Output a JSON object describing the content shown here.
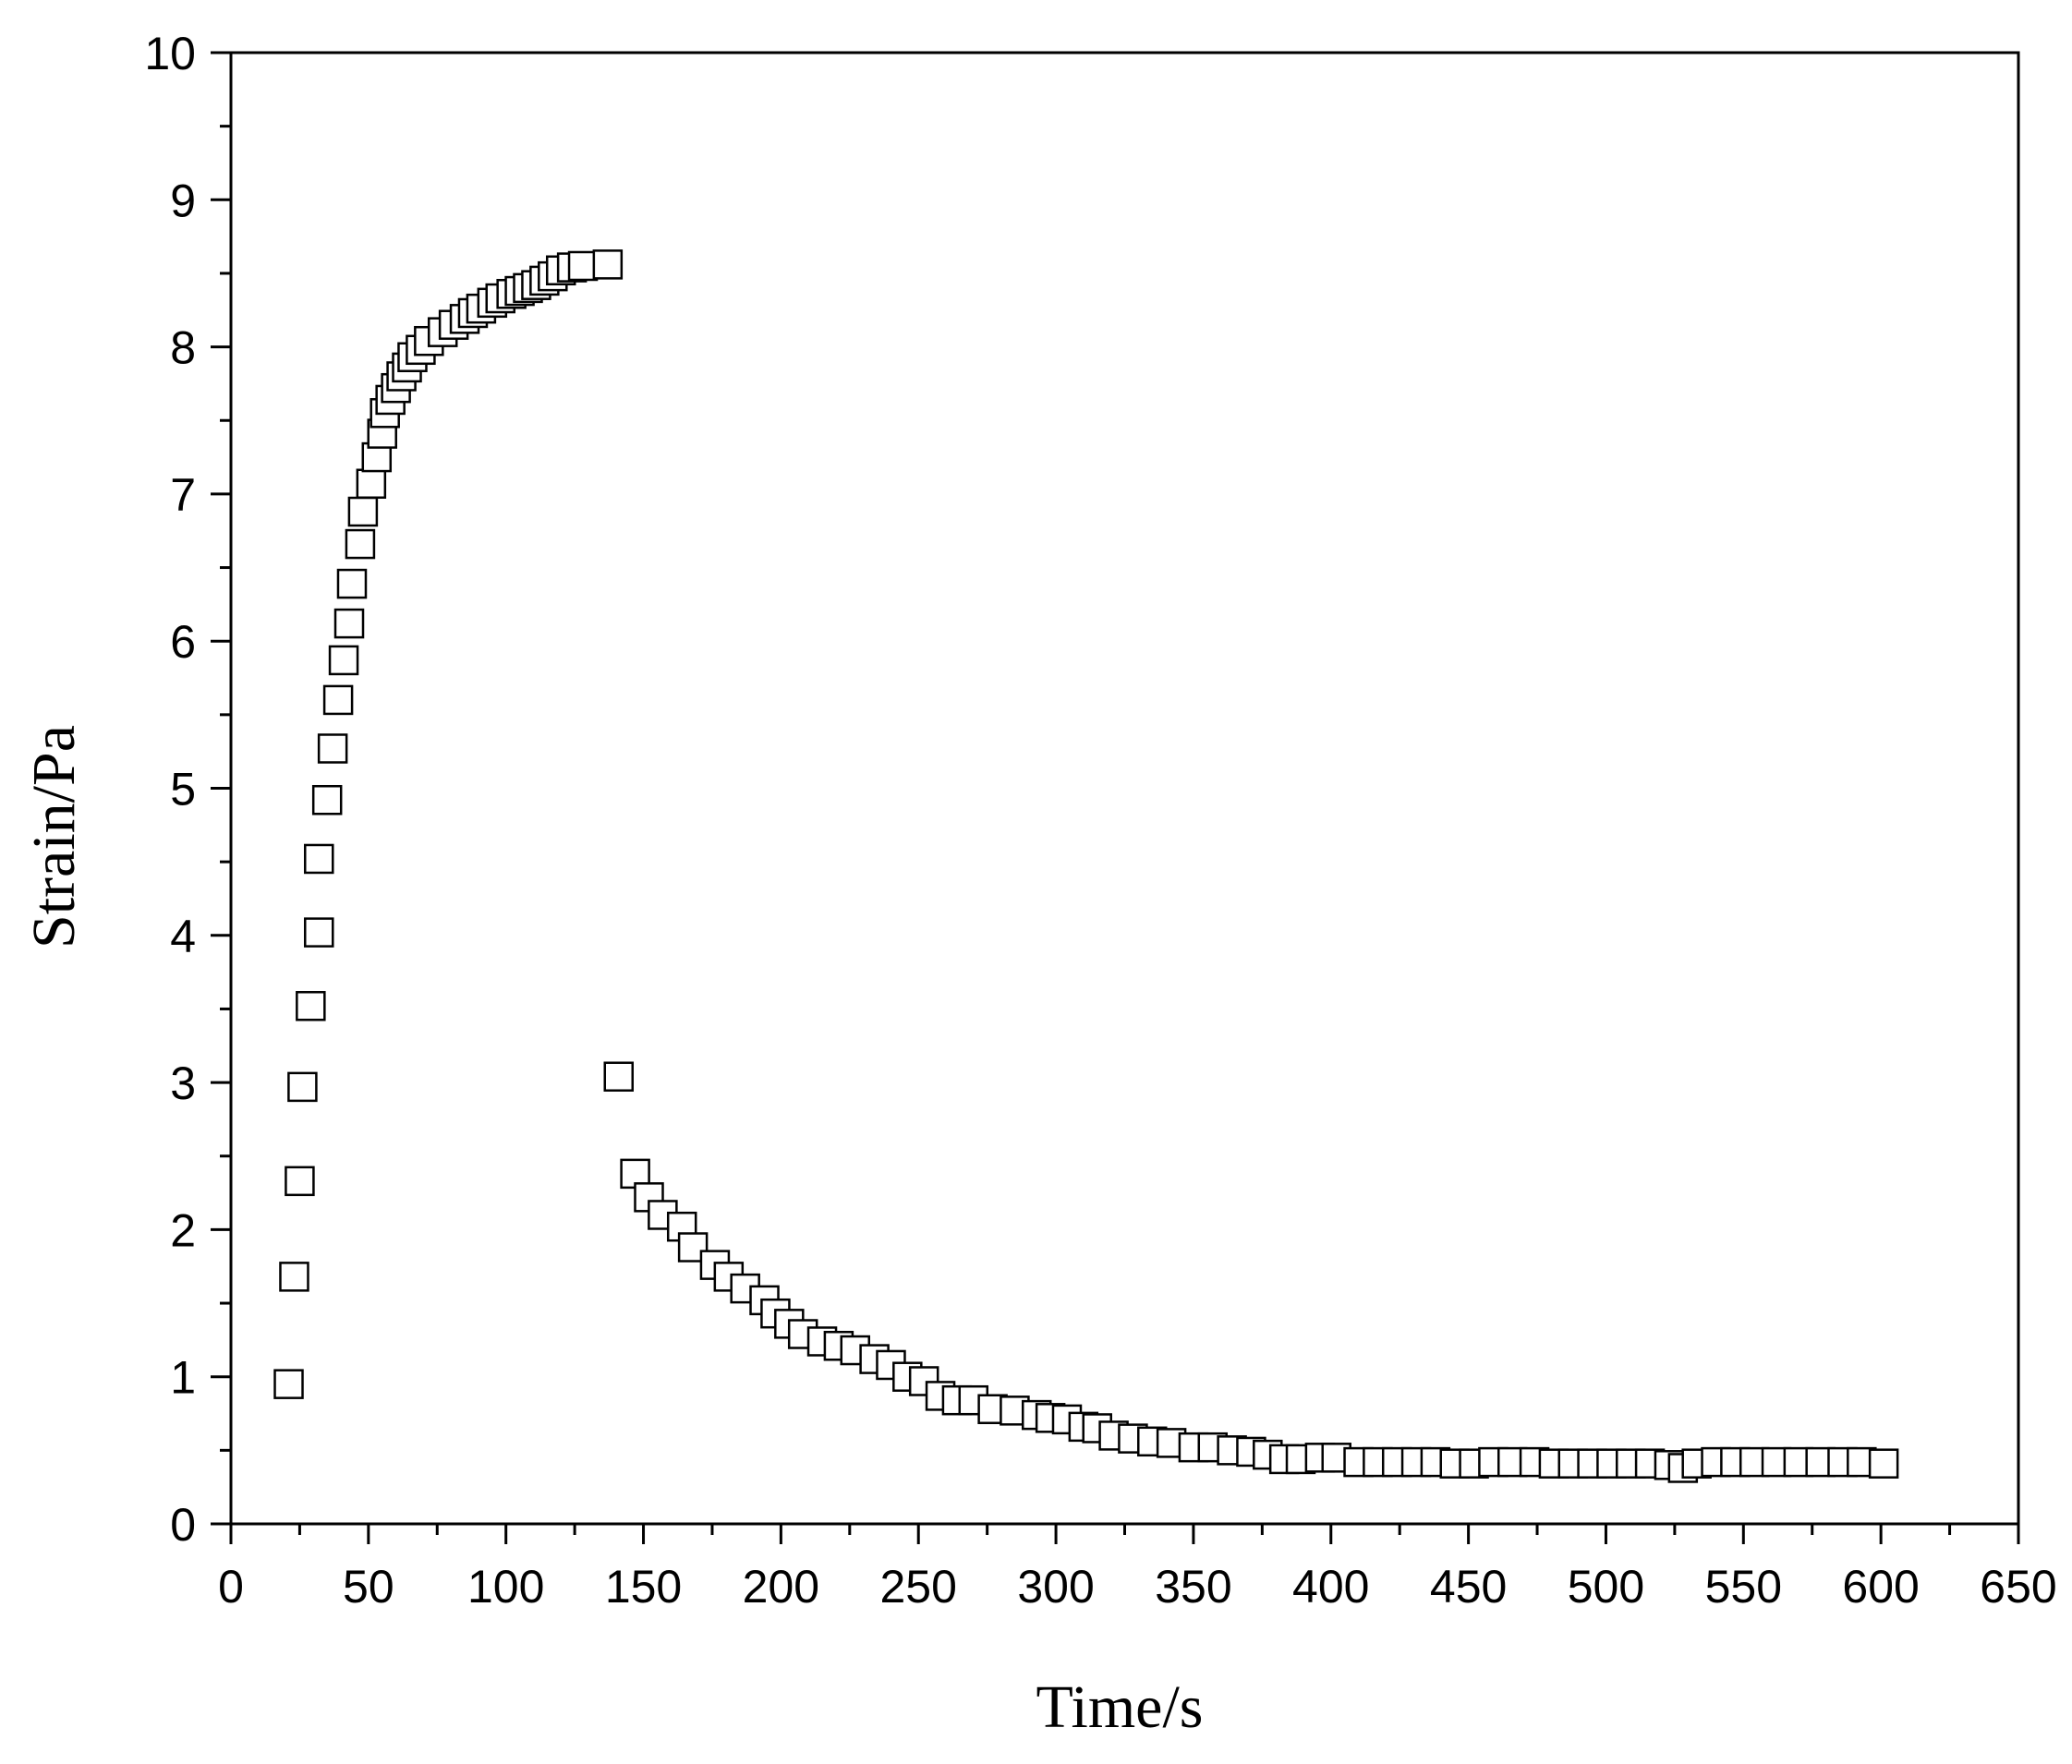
{
  "chart_data": {
    "type": "scatter",
    "title": "",
    "xlabel": "Time/s",
    "ylabel": "Strain/Pa",
    "xlim": [
      0,
      650
    ],
    "ylim": [
      0,
      10
    ],
    "x_ticks": [
      "0",
      "50",
      "100",
      "150",
      "200",
      "250",
      "300",
      "350",
      "400",
      "450",
      "500",
      "550",
      "600",
      "650"
    ],
    "y_ticks": [
      "0",
      "1",
      "2",
      "3",
      "4",
      "5",
      "6",
      "7",
      "8",
      "9",
      "10"
    ],
    "grid": false,
    "legend": "none",
    "marker": "open-square",
    "marker_color": "#000000",
    "series": [
      {
        "x": [
          21,
          23,
          25,
          26,
          29,
          32,
          32,
          35,
          37,
          39,
          41,
          43,
          44,
          47,
          48,
          51,
          53,
          55,
          56,
          58,
          60,
          62,
          64,
          66,
          69,
          72,
          77,
          81,
          85,
          88,
          91,
          95,
          98,
          102,
          105,
          108,
          111,
          114,
          117,
          120,
          124,
          128,
          137
        ],
        "y": [
          0.95,
          1.68,
          2.33,
          2.97,
          3.52,
          4.02,
          4.52,
          4.92,
          5.27,
          5.6,
          5.87,
          6.12,
          6.39,
          6.66,
          6.88,
          7.07,
          7.25,
          7.41,
          7.55,
          7.64,
          7.72,
          7.8,
          7.86,
          7.93,
          7.98,
          8.04,
          8.1,
          8.15,
          8.19,
          8.23,
          8.26,
          8.3,
          8.33,
          8.36,
          8.38,
          8.4,
          8.42,
          8.45,
          8.48,
          8.52,
          8.54,
          8.55,
          8.56
        ]
      },
      {
        "x": [
          141,
          147,
          152,
          157,
          164,
          168,
          176,
          181,
          187,
          194,
          198,
          203,
          208,
          215,
          221,
          227,
          234,
          240,
          246,
          252,
          258,
          264,
          270,
          277,
          285,
          293,
          298,
          304,
          310,
          315,
          321,
          328,
          335,
          342,
          350,
          357,
          364,
          371,
          377,
          383,
          389,
          396,
          402,
          410,
          417,
          424,
          431,
          438,
          445,
          452,
          459,
          466,
          474,
          481,
          488,
          495,
          502,
          509,
          516,
          523,
          528,
          533,
          540,
          547,
          554,
          562,
          570,
          578,
          586,
          593,
          601
        ],
        "y": [
          3.04,
          2.38,
          2.22,
          2.1,
          2.02,
          1.88,
          1.76,
          1.68,
          1.6,
          1.52,
          1.43,
          1.36,
          1.29,
          1.24,
          1.21,
          1.18,
          1.12,
          1.08,
          1.0,
          0.97,
          0.87,
          0.84,
          0.84,
          0.78,
          0.77,
          0.74,
          0.72,
          0.71,
          0.66,
          0.65,
          0.6,
          0.58,
          0.56,
          0.55,
          0.52,
          0.52,
          0.5,
          0.49,
          0.47,
          0.44,
          0.44,
          0.45,
          0.45,
          0.42,
          0.42,
          0.42,
          0.42,
          0.42,
          0.41,
          0.41,
          0.42,
          0.42,
          0.42,
          0.41,
          0.41,
          0.41,
          0.41,
          0.41,
          0.41,
          0.4,
          0.38,
          0.41,
          0.42,
          0.42,
          0.42,
          0.42,
          0.42,
          0.42,
          0.42,
          0.42,
          0.41
        ]
      }
    ]
  }
}
